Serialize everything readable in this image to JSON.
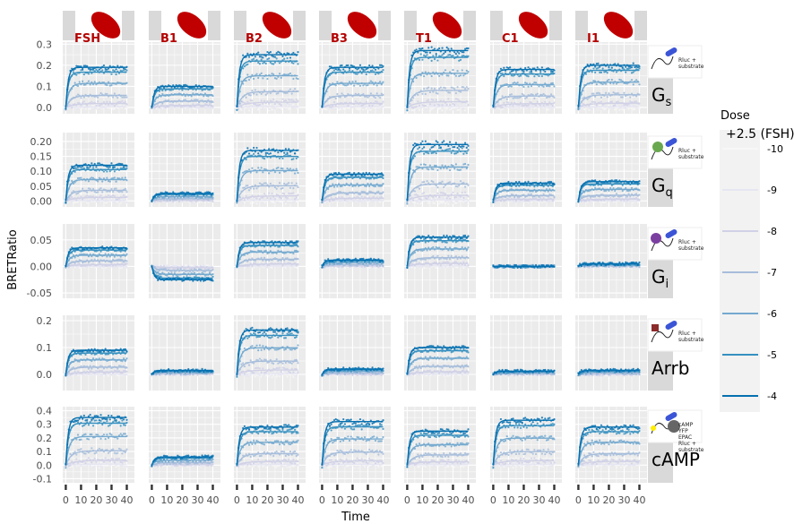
{
  "chart_data": {
    "type": "line",
    "xlabel": "Time",
    "ylabel": "BRETRatio",
    "xlim": [
      -2,
      45
    ],
    "xticks": [
      0,
      10,
      20,
      30,
      40
    ],
    "xtick_labels": [
      "0",
      "10",
      "20",
      "30",
      "40"
    ],
    "grid": true,
    "legend_placement": "right",
    "ligands": [
      "FSH",
      "B1",
      "B2",
      "B3",
      "T1",
      "C1",
      "I1"
    ],
    "pathways": [
      {
        "key": "Gs",
        "main": "G",
        "sub": "s",
        "ylim": [
          -0.03,
          0.31
        ],
        "yticks": [
          0.0,
          0.1,
          0.2,
          0.3
        ],
        "ytick_labels": [
          "0.0",
          "0.1",
          "0.2",
          "0.3"
        ],
        "icon_text": [
          "Rluc +",
          "substrate"
        ],
        "plateaus": {
          "FSH": 0.19,
          "B1": 0.1,
          "B2": 0.25,
          "B3": 0.19,
          "T1": 0.27,
          "C1": 0.18,
          "I1": 0.2
        }
      },
      {
        "key": "Gq",
        "main": "G",
        "sub": "q",
        "ylim": [
          -0.02,
          0.23
        ],
        "yticks": [
          0.0,
          0.05,
          0.1,
          0.15,
          0.2
        ],
        "ytick_labels": [
          "0.00",
          "0.05",
          "0.10",
          "0.15",
          "0.20"
        ],
        "icon_text": [
          "Rluc +",
          "substrate"
        ],
        "plateaus": {
          "FSH": 0.12,
          "B1": 0.025,
          "B2": 0.17,
          "B3": 0.09,
          "T1": 0.19,
          "C1": 0.06,
          "I1": 0.065
        }
      },
      {
        "key": "Gi",
        "main": "G",
        "sub": "i",
        "ylim": [
          -0.06,
          0.08
        ],
        "yticks": [
          -0.05,
          0.0,
          0.05
        ],
        "ytick_labels": [
          "-0.05",
          "0.00",
          "0.05"
        ],
        "icon_text": [
          "Rluc +",
          "substrate"
        ],
        "plateaus": {
          "FSH": 0.035,
          "B1": -0.025,
          "B2": 0.045,
          "B3": 0.012,
          "T1": 0.055,
          "C1": 0.0,
          "I1": 0.005
        }
      },
      {
        "key": "Arrb",
        "main": "Arrb",
        "sub": "",
        "ylim": [
          -0.06,
          0.22
        ],
        "yticks": [
          0.0,
          0.1,
          0.2
        ],
        "ytick_labels": [
          "0.0",
          "0.1",
          "0.2"
        ],
        "icon_text": [
          "Rluc +",
          "substrate"
        ],
        "plateaus": {
          "FSH": 0.09,
          "B1": 0.015,
          "B2": 0.165,
          "B3": 0.02,
          "T1": 0.1,
          "C1": 0.012,
          "I1": 0.015
        }
      },
      {
        "key": "cAMP",
        "main": "cAMP",
        "sub": "",
        "ylim": [
          -0.13,
          0.43
        ],
        "yticks": [
          -0.1,
          0.0,
          0.1,
          0.2,
          0.3,
          0.4
        ],
        "ytick_labels": [
          "-0.1",
          "0.0",
          "0.1",
          "0.2",
          "0.3",
          "0.4"
        ],
        "icon_text": [
          "cAMP",
          "YFP",
          "EPAC",
          "Rluc +",
          "substrate"
        ],
        "plateaus": {
          "FSH": 0.35,
          "B1": 0.06,
          "B2": 0.28,
          "B3": 0.32,
          "T1": 0.25,
          "C1": 0.33,
          "I1": 0.28
        }
      }
    ],
    "dose_fractions": [
      0.0,
      0.02,
      0.1,
      0.3,
      0.6,
      0.88,
      1.0
    ],
    "legend": {
      "title": "Dose",
      "first_label": "+2.5 (FSH)",
      "entries": [
        "-10",
        "-9",
        "-8",
        "-7",
        "-6",
        "-5",
        "-4"
      ],
      "colors": [
        "#f7f7f7",
        "#e6e6f2",
        "#d0d1e6",
        "#a6bddb",
        "#74a9cf",
        "#3690c0",
        "#0570b0"
      ]
    }
  },
  "colors": {
    "panel_bg": "#ebebeb",
    "grid": "#ffffff",
    "strip_bg": "#d9d9d9",
    "ligand_icon": "#c00000"
  }
}
